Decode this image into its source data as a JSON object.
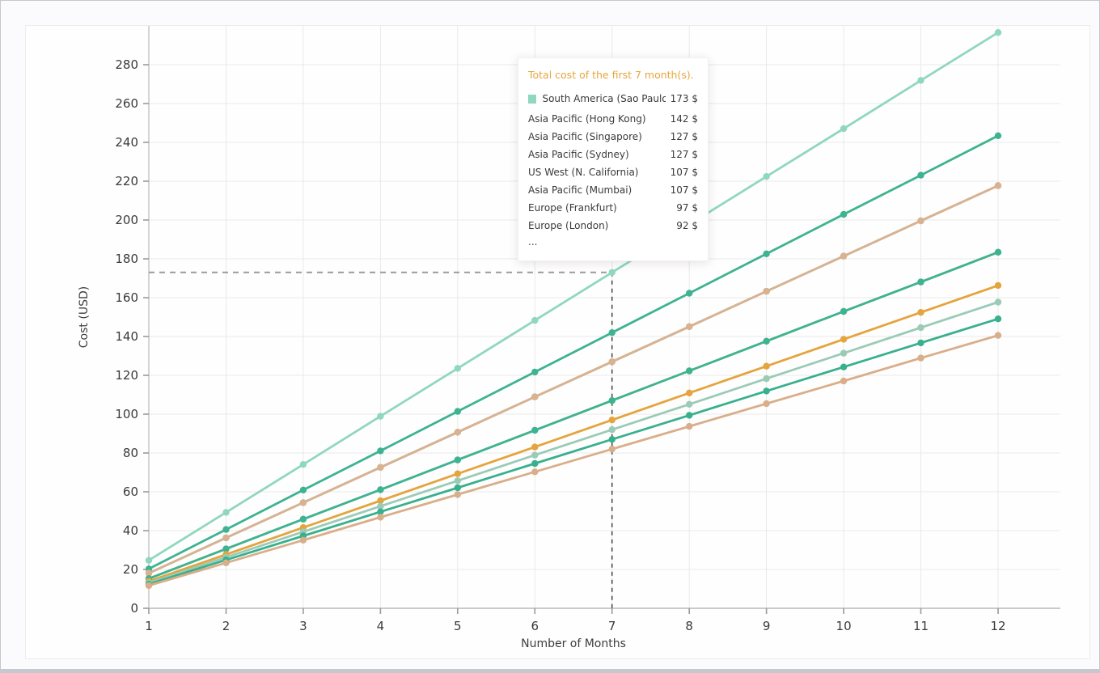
{
  "chart_data": {
    "type": "line",
    "title": "",
    "xlabel": "Number of Months",
    "ylabel": "Cost (USD)",
    "months": [
      1,
      2,
      3,
      4,
      5,
      6,
      7,
      8,
      9,
      10,
      11,
      12
    ],
    "xlim": [
      1,
      12
    ],
    "ylim": [
      0,
      300
    ],
    "ytick_step": 20,
    "ytick_label_max": 280,
    "grid": true,
    "crosshair": {
      "month": 7,
      "value": 173
    },
    "series": [
      {
        "name": "South America (Sao Paulo)",
        "color": "#8fd8bd",
        "values": [
          24.7,
          49.4,
          74.1,
          98.9,
          123.6,
          148.3,
          173.0,
          197.7,
          222.4,
          247.1,
          271.9,
          296.6
        ]
      },
      {
        "name": "Asia Pacific (Hong Kong)",
        "color": "#3db391",
        "values": [
          20.3,
          40.6,
          60.9,
          81.1,
          101.4,
          121.7,
          142.0,
          162.3,
          182.6,
          202.9,
          223.1,
          243.4
        ]
      },
      {
        "name": "Asia Pacific (Singapore)",
        "color": "#49bd9b",
        "values": [
          18.1,
          36.3,
          54.4,
          72.6,
          90.7,
          108.9,
          127.0,
          145.1,
          163.3,
          181.4,
          199.6,
          217.7
        ]
      },
      {
        "name": "Asia Pacific (Sydney)",
        "color": "#dcb190",
        "values": [
          18.1,
          36.3,
          54.4,
          72.6,
          90.7,
          108.9,
          127.0,
          145.1,
          163.3,
          181.4,
          199.6,
          217.7
        ]
      },
      {
        "name": "US West (N. California)",
        "color": "#d8ae8c",
        "values": [
          15.3,
          30.6,
          45.9,
          61.1,
          76.4,
          91.7,
          107.0,
          122.3,
          137.6,
          152.9,
          168.1,
          183.4
        ]
      },
      {
        "name": "Asia Pacific (Mumbai)",
        "color": "#3cb492",
        "values": [
          15.3,
          30.6,
          45.9,
          61.1,
          76.4,
          91.7,
          107.0,
          122.3,
          137.6,
          152.9,
          168.1,
          183.4
        ]
      },
      {
        "name": "Europe (Frankfurt)",
        "color": "#e4a43e",
        "values": [
          13.9,
          27.7,
          41.6,
          55.4,
          69.3,
          83.1,
          97.0,
          110.9,
          124.7,
          138.6,
          152.4,
          166.3
        ]
      },
      {
        "name": "Europe (London)",
        "color": "#9bcbb7",
        "values": [
          13.1,
          26.3,
          39.4,
          52.6,
          65.7,
          78.9,
          92.0,
          105.1,
          118.3,
          131.4,
          144.6,
          157.7
        ]
      },
      {
        "name": "",
        "color": "#38b08d",
        "values": [
          12.4,
          24.9,
          37.3,
          49.7,
          62.1,
          74.6,
          87.0,
          99.4,
          111.9,
          124.3,
          136.7,
          149.1
        ]
      },
      {
        "name": "",
        "color": "#d9ae8a",
        "values": [
          11.7,
          23.4,
          35.1,
          46.9,
          58.6,
          70.3,
          82.0,
          93.7,
          105.4,
          117.1,
          128.9,
          140.6
        ]
      }
    ]
  },
  "tooltip": {
    "title": "Total cost of the first 7 month(s).",
    "rows": [
      {
        "label": "South America (Sao Paulo)",
        "value": "173 $",
        "marker": true
      },
      {
        "label": "Asia Pacific (Hong Kong)",
        "value": "142 $",
        "marker": false
      },
      {
        "label": "Asia Pacific (Singapore)",
        "value": "127 $",
        "marker": false
      },
      {
        "label": "Asia Pacific (Sydney)",
        "value": "127 $",
        "marker": false
      },
      {
        "label": "US West (N. California)",
        "value": "107 $",
        "marker": false
      },
      {
        "label": "Asia Pacific (Mumbai)",
        "value": "107 $",
        "marker": false
      },
      {
        "label": "Europe (Frankfurt)",
        "value": "97 $",
        "marker": false
      },
      {
        "label": "Europe (London)",
        "value": "92 $",
        "marker": false
      }
    ],
    "more": "..."
  }
}
